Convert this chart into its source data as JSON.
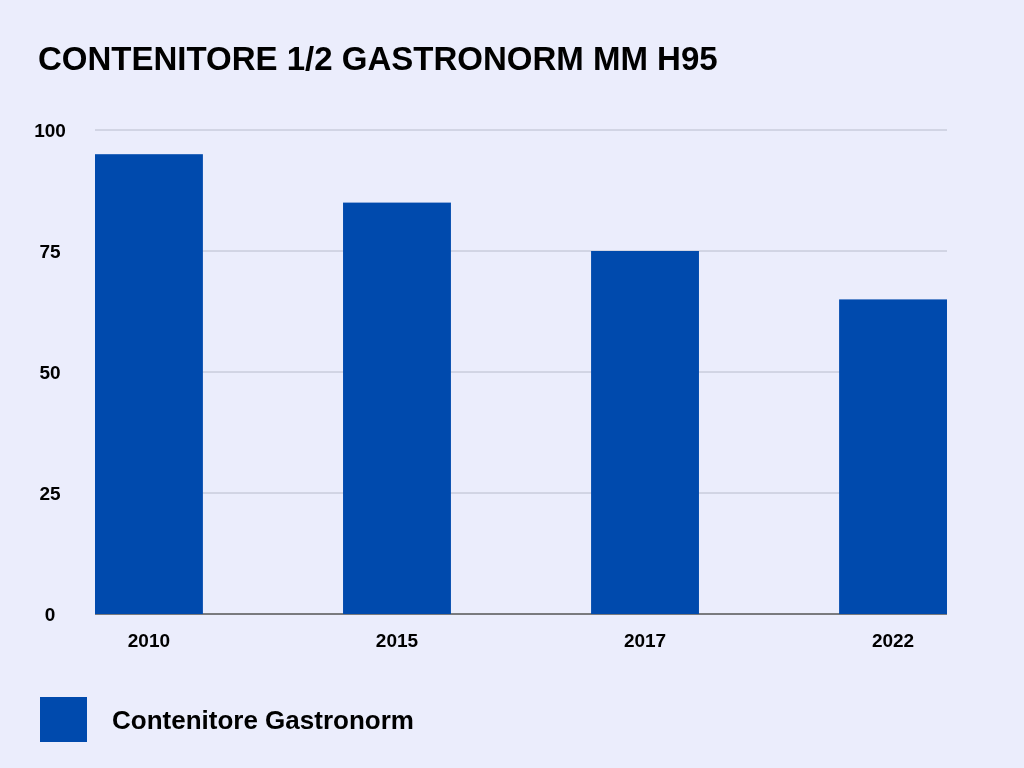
{
  "chart_data": {
    "type": "bar",
    "title": "CONTENITORE 1/2 GASTRONORM MM H95",
    "categories": [
      "2010",
      "2015",
      "2017",
      "2022"
    ],
    "series": [
      {
        "name": "Contenitore Gastronorm",
        "color": "#004aad",
        "values": [
          95,
          85,
          75,
          65
        ]
      }
    ],
    "ylim": [
      0,
      100
    ],
    "yticks": [
      0,
      25,
      50,
      75,
      100
    ],
    "grid": "y",
    "legend": "bottom left"
  }
}
